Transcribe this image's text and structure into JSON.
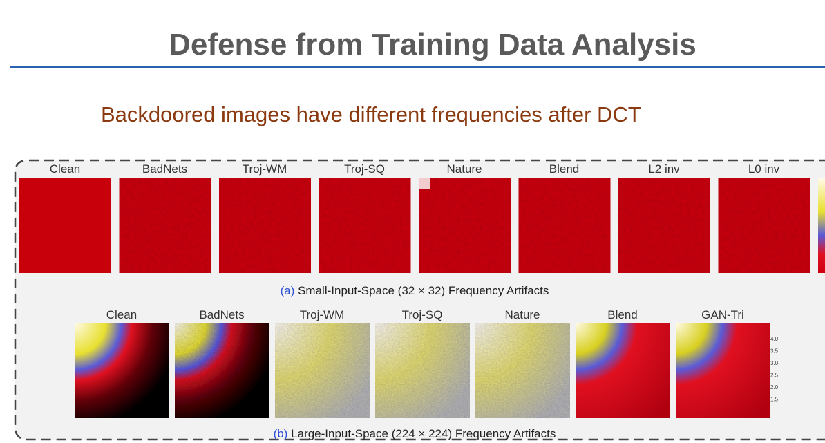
{
  "header": {
    "title": "Defense from Training Data Analysis",
    "subtitle": "Backdoored images have different frequencies after DCT"
  },
  "panel_a": {
    "labels": [
      "Clean",
      "BadNets",
      "Troj-WM",
      "Troj-SQ",
      "Nature",
      "Blend",
      "L2 inv",
      "L0 inv"
    ],
    "caption": {
      "tag": "(a)",
      "text": "Small-Input-Space (32 × 32) Frequency Artifacts"
    }
  },
  "panel_b": {
    "labels": [
      "Clean",
      "BadNets",
      "Troj-WM",
      "Troj-SQ",
      "Nature",
      "Blend",
      "GAN-Tri"
    ],
    "colorbar_labels": [
      "4.0",
      "3.5",
      "3.0",
      "2.5",
      "2.0",
      "1.5"
    ],
    "caption": {
      "tag": "(b)",
      "text": "Large-Input-Space (224 × 224) Frequency Artifacts"
    }
  }
}
